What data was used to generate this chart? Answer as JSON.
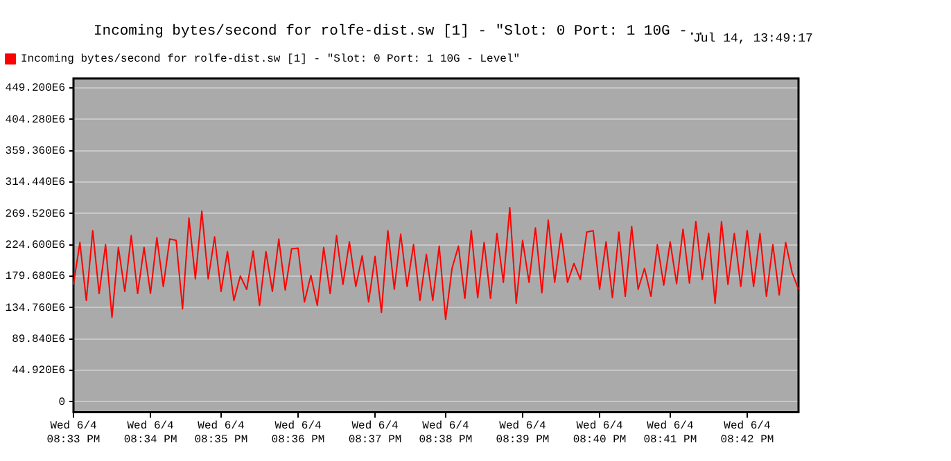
{
  "chart_data": {
    "type": "line",
    "title": "Incoming bytes/second for rolfe-dist.sw [1] - \"Slot: 0 Port: 1 10G -..",
    "annotations": [
      "Jul 14, 13:49:17"
    ],
    "legend": "top left",
    "grid": "y",
    "marker": "none",
    "line_style": "solid",
    "categories": [
      "Wed 6/4\n08:33 PM",
      null,
      null,
      null,
      null,
      null,
      null,
      null,
      null,
      null,
      null,
      null,
      "Wed 6/4\n08:34 PM",
      null,
      null,
      null,
      null,
      null,
      null,
      null,
      null,
      null,
      null,
      "Wed 6/4\n08:35 PM",
      null,
      null,
      null,
      null,
      null,
      null,
      null,
      null,
      null,
      null,
      null,
      "Wed 6/4\n08:36 PM",
      null,
      null,
      null,
      null,
      null,
      null,
      null,
      null,
      null,
      null,
      null,
      "Wed 6/4\n08:37 PM",
      null,
      null,
      null,
      null,
      null,
      null,
      null,
      null,
      null,
      null,
      "Wed 6/4\n08:38 PM",
      null,
      null,
      null,
      null,
      null,
      null,
      null,
      null,
      null,
      null,
      null,
      "Wed 6/4\n08:39 PM",
      null,
      null,
      null,
      null,
      null,
      null,
      null,
      null,
      null,
      null,
      null,
      "Wed 6/4\n08:40 PM",
      null,
      null,
      null,
      null,
      null,
      null,
      null,
      null,
      null,
      null,
      "Wed 6/4\n08:41 PM",
      null,
      null,
      null,
      null,
      null,
      null,
      null,
      null,
      null,
      null,
      null,
      "Wed 6/4\n08:42 PM",
      null,
      null,
      null,
      null,
      null,
      null,
      null,
      null
    ],
    "ylim": [
      -15000000.0,
      463000000.0
    ],
    "yticks": [
      0,
      {
        "value": 44920000,
        "label": "44.920E6"
      },
      {
        "value": 89840000,
        "label": "89.840E6"
      },
      {
        "value": 134760000,
        "label": "134.760E6"
      },
      {
        "value": 179680000,
        "label": "179.680E6"
      },
      {
        "value": 224600000,
        "label": "224.600E6"
      },
      {
        "value": 269520000,
        "label": "269.520E6"
      },
      {
        "value": 314440000,
        "label": "314.440E6"
      },
      {
        "value": 359360000,
        "label": "359.360E6"
      },
      {
        "value": 404280000,
        "label": "404.280E6"
      },
      {
        "value": 449200000,
        "label": "449.200E6"
      }
    ],
    "series": [
      {
        "name": "Incoming bytes/second for rolfe-dist.sw [1] - \"Slot: 0 Port: 1 10G - Level\"",
        "color": "#ff0000",
        "values": [
          168000000.0,
          228000000.0,
          145000000.0,
          245000000.0,
          155000000.0,
          225000000.0,
          121000000.0,
          221000000.0,
          158000000.0,
          238000000.0,
          155000000.0,
          221000000.0,
          155000000.0,
          235000000.0,
          165000000.0,
          233000000.0,
          231000000.0,
          133000000.0,
          263000000.0,
          176000000.0,
          273000000.0,
          176000000.0,
          236000000.0,
          158000000.0,
          215000000.0,
          145000000.0,
          180000000.0,
          161000000.0,
          216000000.0,
          138000000.0,
          215000000.0,
          158000000.0,
          233000000.0,
          160000000.0,
          219000000.0,
          220000000.0,
          143000000.0,
          181000000.0,
          138000000.0,
          221000000.0,
          155000000.0,
          238000000.0,
          168000000.0,
          229000000.0,
          165000000.0,
          209000000.0,
          143000000.0,
          208000000.0,
          128000000.0,
          245000000.0,
          161000000.0,
          240000000.0,
          165000000.0,
          225000000.0,
          145000000.0,
          211000000.0,
          145000000.0,
          223000000.0,
          118000000.0,
          191000000.0,
          223000000.0,
          148000000.0,
          245000000.0,
          149000000.0,
          228000000.0,
          148000000.0,
          241000000.0,
          171000000.0,
          278000000.0,
          141000000.0,
          231000000.0,
          171000000.0,
          249000000.0,
          156000000.0,
          260000000.0,
          171000000.0,
          241000000.0,
          171000000.0,
          198000000.0,
          175000000.0,
          243000000.0,
          245000000.0,
          161000000.0,
          229000000.0,
          149000000.0,
          243000000.0,
          151000000.0,
          251000000.0,
          161000000.0,
          191000000.0,
          151000000.0,
          225000000.0,
          167000000.0,
          229000000.0,
          169000000.0,
          247000000.0,
          170000000.0,
          258000000.0,
          175000000.0,
          241000000.0,
          141000000.0,
          258000000.0,
          168000000.0,
          241000000.0,
          165000000.0,
          245000000.0,
          165000000.0,
          241000000.0,
          151000000.0,
          225000000.0,
          153000000.0,
          228000000.0,
          185000000.0,
          161000000.0
        ]
      }
    ]
  }
}
